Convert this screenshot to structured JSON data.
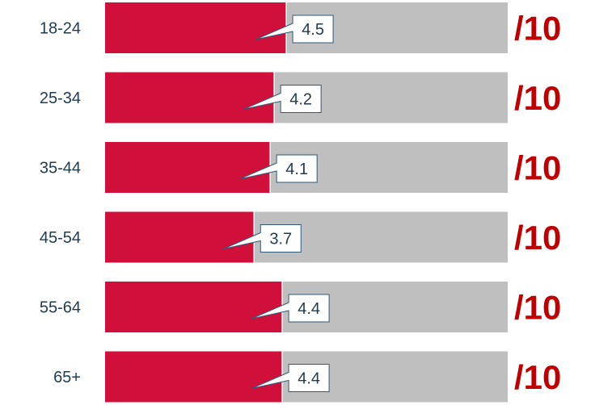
{
  "chart_data": {
    "type": "bar",
    "orientation": "horizontal",
    "categories": [
      "18-24",
      "25-34",
      "35-44",
      "45-54",
      "55-64",
      "65+"
    ],
    "values": [
      4.5,
      4.2,
      4.1,
      3.7,
      4.4,
      4.4
    ],
    "value_labels": [
      "4.5",
      "4.2",
      "4.1",
      "3.7",
      "4.4",
      "4.4"
    ],
    "max": 10,
    "xlim": [
      0,
      10
    ],
    "suffix": "/10",
    "colors": {
      "bar": "#d0103a",
      "track": "#bfbfbf",
      "suffix": "#c00000",
      "label_text": "#1f3b4d",
      "callout_border": "#2e5a78"
    },
    "grid": false,
    "legend": "none"
  }
}
